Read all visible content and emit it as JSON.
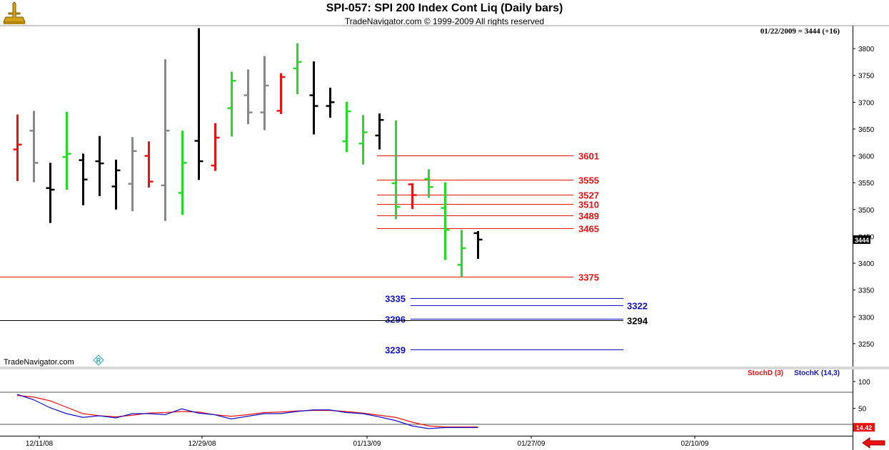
{
  "header": {
    "title": "SPI-057:  SPI 200 Index Cont Liq  (Daily bars)",
    "copyright": "TradeNavigator.com © 1999-2009 All rights reserved",
    "readout": "01/22/2009 = 3444 (+16)"
  },
  "watermark": "TradeNavigator.com",
  "colors": {
    "up": "#22dd22",
    "down": "#ee1111",
    "neutral": "#000000",
    "inactive": "#888888",
    "level_red": "#ee1111",
    "level_blue": "#1111cc",
    "stoch_d": "#ee1111",
    "stoch_k": "#1111cc"
  },
  "chart_data": [
    {
      "type": "bar",
      "subtype": "ohlc",
      "ylim": [
        3210,
        3840
      ],
      "yticks": [
        "3250",
        "3300",
        "3350",
        "3400",
        "3450",
        "3500",
        "3550",
        "3600",
        "3650",
        "3700",
        "3750",
        "3800"
      ],
      "last_price": "3444",
      "bars": [
        {
          "o": 3612,
          "h": 3677,
          "l": 3553,
          "c": 3621,
          "color": "down"
        },
        {
          "o": 3647,
          "h": 3684,
          "l": 3551,
          "c": 3587,
          "color": "inactive"
        },
        {
          "o": 3540,
          "h": 3587,
          "l": 3475,
          "c": 3537,
          "color": "neutral"
        },
        {
          "o": 3598,
          "h": 3682,
          "l": 3537,
          "c": 3604,
          "color": "up"
        },
        {
          "o": 3592,
          "h": 3604,
          "l": 3508,
          "c": 3556,
          "color": "neutral"
        },
        {
          "o": 3590,
          "h": 3637,
          "l": 3525,
          "c": 3586,
          "color": "neutral"
        },
        {
          "o": 3543,
          "h": 3593,
          "l": 3500,
          "c": 3573,
          "color": "neutral"
        },
        {
          "o": 3548,
          "h": 3635,
          "l": 3497,
          "c": 3609,
          "color": "inactive"
        },
        {
          "o": 3600,
          "h": 3627,
          "l": 3541,
          "c": 3552,
          "color": "down"
        },
        {
          "o": 3545,
          "h": 3780,
          "l": 3479,
          "c": 3647,
          "color": "inactive"
        },
        {
          "o": 3531,
          "h": 3647,
          "l": 3490,
          "c": 3587,
          "color": "up"
        },
        {
          "o": 3628,
          "h": 3838,
          "l": 3555,
          "c": 3590,
          "color": "neutral"
        },
        {
          "o": 3582,
          "h": 3661,
          "l": 3572,
          "c": 3634,
          "color": "down"
        },
        {
          "o": 3689,
          "h": 3757,
          "l": 3636,
          "c": 3740,
          "color": "up"
        },
        {
          "o": 3713,
          "h": 3761,
          "l": 3659,
          "c": 3681,
          "color": "inactive"
        },
        {
          "o": 3681,
          "h": 3786,
          "l": 3648,
          "c": 3731,
          "color": "inactive"
        },
        {
          "o": 3684,
          "h": 3754,
          "l": 3678,
          "c": 3747,
          "color": "down"
        },
        {
          "o": 3763,
          "h": 3810,
          "l": 3715,
          "c": 3775,
          "color": "up"
        },
        {
          "o": 3713,
          "h": 3776,
          "l": 3640,
          "c": 3693,
          "color": "neutral"
        },
        {
          "o": 3693,
          "h": 3727,
          "l": 3671,
          "c": 3700,
          "color": "neutral"
        },
        {
          "o": 3627,
          "h": 3701,
          "l": 3607,
          "c": 3683,
          "color": "up"
        },
        {
          "o": 3623,
          "h": 3676,
          "l": 3584,
          "c": 3644,
          "color": "up"
        },
        {
          "o": 3638,
          "h": 3679,
          "l": 3612,
          "c": 3667,
          "color": "neutral"
        },
        {
          "o": 3549,
          "h": 3666,
          "l": 3482,
          "c": 3505,
          "color": "up"
        },
        {
          "o": 3547,
          "h": 3549,
          "l": 3501,
          "c": 3527,
          "color": "down"
        },
        {
          "o": 3557,
          "h": 3575,
          "l": 3522,
          "c": 3542,
          "color": "up"
        },
        {
          "o": 3503,
          "h": 3551,
          "l": 3406,
          "c": 3462,
          "color": "up"
        },
        {
          "o": 3397,
          "h": 3462,
          "l": 3374,
          "c": 3428,
          "color": "up"
        },
        {
          "o": 3456,
          "h": 3460,
          "l": 3408,
          "c": 3444,
          "color": "neutral"
        }
      ],
      "levels": [
        {
          "value": 3601,
          "label": "3601",
          "color": "level_red",
          "label_side": "right",
          "span": "short"
        },
        {
          "value": 3555,
          "label": "3555",
          "color": "level_red",
          "label_side": "right",
          "span": "short"
        },
        {
          "value": 3527,
          "label": "3527",
          "color": "level_red",
          "label_side": "right",
          "span": "short"
        },
        {
          "value": 3510,
          "label": "3510",
          "color": "level_red",
          "label_side": "right",
          "span": "short"
        },
        {
          "value": 3489,
          "label": "3489",
          "color": "level_red",
          "label_side": "right",
          "span": "short"
        },
        {
          "value": 3465,
          "label": "3465",
          "color": "level_red",
          "label_side": "right",
          "span": "short"
        },
        {
          "value": 3375,
          "label": "3375",
          "color": "level_red",
          "label_side": "right",
          "span": "full"
        },
        {
          "value": 3335,
          "label": "3335",
          "color": "level_blue",
          "label_side": "left",
          "span": "projection"
        },
        {
          "value": 3322,
          "label": "3322",
          "color": "level_blue",
          "label_side": "far-right",
          "span": "projection"
        },
        {
          "value": 3296,
          "label": "3296",
          "color": "level_blue",
          "label_side": "left",
          "span": "projection"
        },
        {
          "value": 3294,
          "label": "3294",
          "color": "neutral",
          "label_side": "far-right",
          "span": "full"
        },
        {
          "value": 3239,
          "label": "3239",
          "color": "level_blue",
          "label_side": "left",
          "span": "projection"
        }
      ]
    },
    {
      "type": "line",
      "legend": [
        "StochD (3)",
        "StochK (14,3)"
      ],
      "ylim": [
        0,
        120
      ],
      "yticks": [
        "50",
        "100"
      ],
      "reference_lines": [
        20,
        80
      ],
      "last_value": "14.42",
      "series": [
        {
          "name": "StochD (3)",
          "color": "stoch_d",
          "values": [
            74,
            71,
            64,
            52,
            40,
            36,
            34,
            37,
            41,
            42,
            44,
            43,
            38,
            35,
            38,
            42,
            43,
            45,
            46,
            46,
            44,
            41,
            37,
            33,
            24,
            17,
            15,
            15,
            15
          ]
        },
        {
          "name": "StochK (14,3)",
          "color": "stoch_k",
          "values": [
            76,
            66,
            51,
            40,
            33,
            36,
            32,
            40,
            40,
            38,
            49,
            41,
            38,
            30,
            35,
            40,
            40,
            44,
            47,
            47,
            42,
            40,
            34,
            27,
            17,
            12,
            14,
            14,
            14
          ]
        }
      ]
    }
  ],
  "xaxis": {
    "ticks": [
      "12/11/08",
      "12/29/08",
      "01/13/09",
      "01/27/09",
      "02/10/09"
    ]
  }
}
